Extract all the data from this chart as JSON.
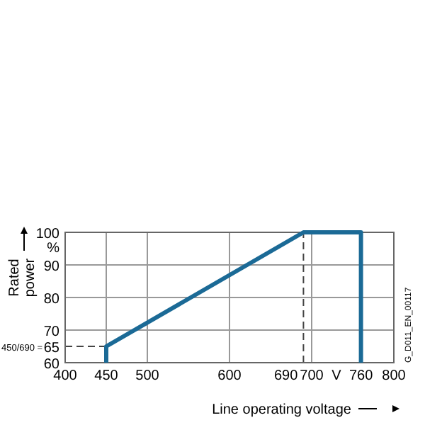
{
  "chart_data": {
    "type": "line",
    "ylabel": "Rated power",
    "xlabel": "Line operating voltage",
    "x": [
      450,
      450,
      690,
      760,
      760
    ],
    "series": [
      {
        "color": "#1b6a96",
        "values": [
          60,
          65,
          100,
          100,
          60
        ]
      }
    ],
    "xlim": [
      400,
      800
    ],
    "xticks": [
      400,
      450,
      500,
      600,
      700,
      760,
      800
    ],
    "ylim": [
      60,
      100
    ],
    "yticks": [
      60,
      65,
      70,
      80,
      90,
      100
    ],
    "grid": true,
    "marker": "none",
    "line_style": "solid",
    "ref_lines": [
      {
        "axis": "x",
        "value": 690,
        "label": "690",
        "line_style": "dashed",
        "color": "#444444"
      },
      {
        "axis": "y",
        "value": 65,
        "line_style": "dashed",
        "color": "#444444"
      }
    ],
    "annotations": [
      "%",
      "V",
      "450/690 =",
      "G_D011_EN_00117"
    ]
  }
}
